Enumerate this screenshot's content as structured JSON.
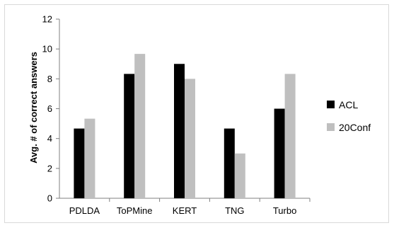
{
  "chart_data": {
    "type": "bar",
    "title": "",
    "xlabel": "",
    "ylabel": "Avg.  # of correct answers",
    "ylim": [
      0,
      12
    ],
    "yticks": [
      0,
      2,
      4,
      6,
      8,
      10,
      12
    ],
    "grid": false,
    "legend_position": "right",
    "categories": [
      "PDLDA",
      "ToPMine",
      "KERT",
      "TNG",
      "Turbo"
    ],
    "series": [
      {
        "name": "ACL",
        "color": "#000000",
        "values": [
          4.67,
          8.33,
          9.0,
          4.67,
          6.0
        ]
      },
      {
        "name": "20Conf",
        "color": "#bfbfbf",
        "values": [
          5.33,
          9.67,
          8.0,
          3.0,
          8.33
        ]
      }
    ]
  }
}
